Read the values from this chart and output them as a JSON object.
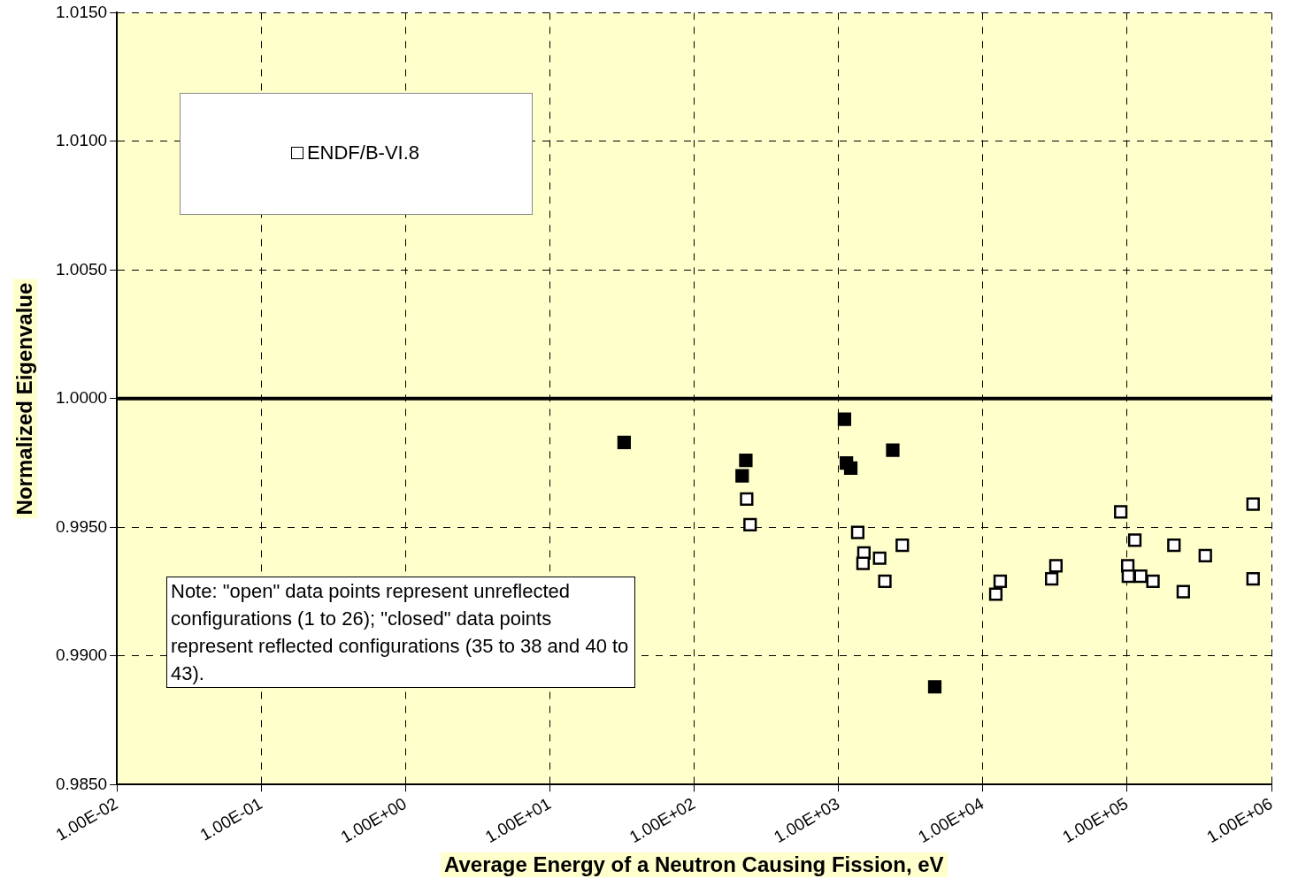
{
  "chart_data": {
    "type": "scatter",
    "xlabel": "Average Energy of a Neutron Causing Fission, eV",
    "ylabel": "Normalized Eigenvalue",
    "log": "x",
    "grid": true,
    "legend": "top left",
    "marker": "square",
    "xlim": [
      0.01,
      1000000
    ],
    "xticks": [
      {
        "value": 0.01,
        "label": "1.00E-02"
      },
      {
        "value": 0.1,
        "label": "1.00E-01"
      },
      {
        "value": 1,
        "label": "1.00E+00"
      },
      {
        "value": 10,
        "label": "1.00E+01"
      },
      {
        "value": 100,
        "label": "1.00E+02"
      },
      {
        "value": 1000,
        "label": "1.00E+03"
      },
      {
        "value": 10000,
        "label": "1.00E+04"
      },
      {
        "value": 100000,
        "label": "1.00E+05"
      },
      {
        "value": 1000000,
        "label": "1.00E+06"
      }
    ],
    "ylim": [
      0.985,
      1.015
    ],
    "yticks": [
      {
        "value": 0.985,
        "label": "0.9850"
      },
      {
        "value": 0.99,
        "label": "0.9900"
      },
      {
        "value": 0.995,
        "label": "0.9950"
      },
      {
        "value": 1,
        "label": "1.0000"
      },
      {
        "value": 1.005,
        "label": "1.0050"
      },
      {
        "value": 1.01,
        "label": "1.0100"
      },
      {
        "value": 1.015,
        "label": "1.0150"
      }
    ],
    "ref_lines": [
      {
        "axis": "y",
        "value": 1,
        "color": "#000000"
      }
    ],
    "annotations": [
      "Note:  \"open\" data points represent unreflected configurations (1 to 26); \"closed\" data points represent reflected configurations (35 to 38 and 40 to 43)."
    ],
    "series": [
      {
        "name": "ENDF/B-VI.8",
        "color": "#ffffff",
        "x": [
          231,
          244,
          1359,
          1500,
          1479,
          1928,
          2768,
          2095,
          90300,
          746000,
          113000,
          211000,
          348000,
          32100,
          30000,
          13200,
          12800,
          12300,
          101000,
          102000,
          118000,
          124000,
          151000,
          245000,
          746000
        ],
        "values": [
          0.9961,
          0.9951,
          0.9948,
          0.994,
          0.9936,
          0.9938,
          0.9943,
          0.9929,
          0.9956,
          0.9959,
          0.9945,
          0.9943,
          0.9939,
          0.9935,
          0.993,
          0.9929,
          null,
          0.9924,
          0.9935,
          0.9931,
          null,
          0.9931,
          0.9929,
          0.9925,
          0.993
        ]
      },
      {
        "color": "#000000",
        "x": [
          32.7,
          228,
          215,
          1100,
          1135,
          1216,
          2377,
          4645
        ],
        "values": [
          0.9983,
          0.9976,
          0.997,
          0.9992,
          0.9975,
          0.9973,
          0.998,
          0.9888
        ]
      }
    ]
  }
}
